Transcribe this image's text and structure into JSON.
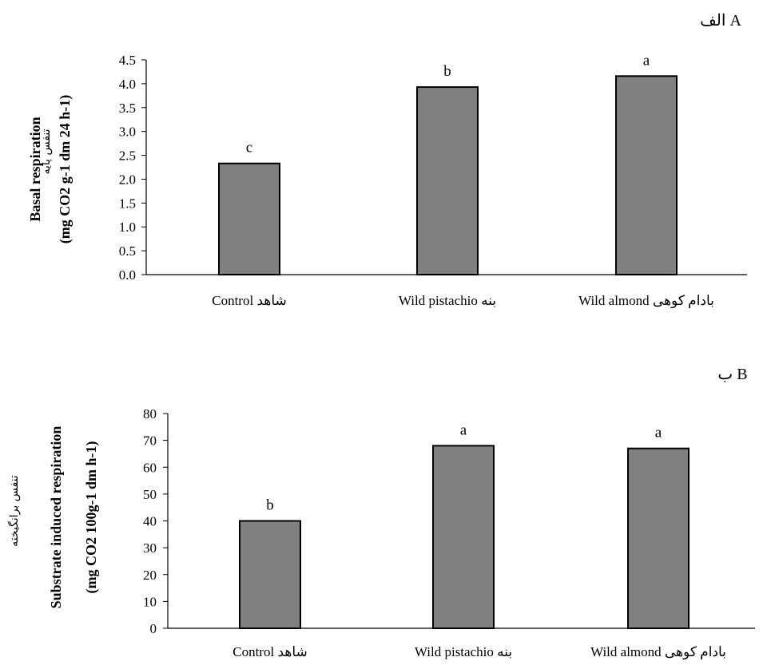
{
  "chart_data": [
    {
      "type": "bar",
      "panel_label": "الف A",
      "categories": [
        "Control شاهد",
        "Wild pistachio  بنه",
        "Wild almond  بادام کوهی"
      ],
      "values": [
        2.33,
        3.93,
        4.16
      ],
      "significance": [
        "c",
        "b",
        "a"
      ],
      "ylabel_fa": "تنفس پایه",
      "ylabel_line1": "Basal respiration",
      "ylabel_line2": "(mg CO2 g-1 dm 24 h-1)",
      "ylim": [
        0,
        4.5
      ],
      "yticks": [
        "0.0",
        "0.5",
        "1.0",
        "1.5",
        "2.0",
        "2.5",
        "3.0",
        "3.5",
        "4.0",
        "4.5"
      ],
      "bar_color": "#808080",
      "grid": false
    },
    {
      "type": "bar",
      "panel_label": "ب B",
      "categories": [
        "Control شاهد",
        "Wild pistachio  بنه",
        "Wild almond  بادام کوهی"
      ],
      "values": [
        40,
        68,
        67
      ],
      "significance": [
        "b",
        "a",
        "a"
      ],
      "ylabel_fa": "تنفس برانگیخته",
      "ylabel_line1": "Substrate induced respiration",
      "ylabel_line2": "(mg CO2 100g-1 dm h-1)",
      "ylim": [
        0,
        80
      ],
      "yticks": [
        "0",
        "10",
        "20",
        "30",
        "40",
        "50",
        "60",
        "70",
        "80"
      ],
      "bar_color": "#808080",
      "grid": false
    }
  ]
}
